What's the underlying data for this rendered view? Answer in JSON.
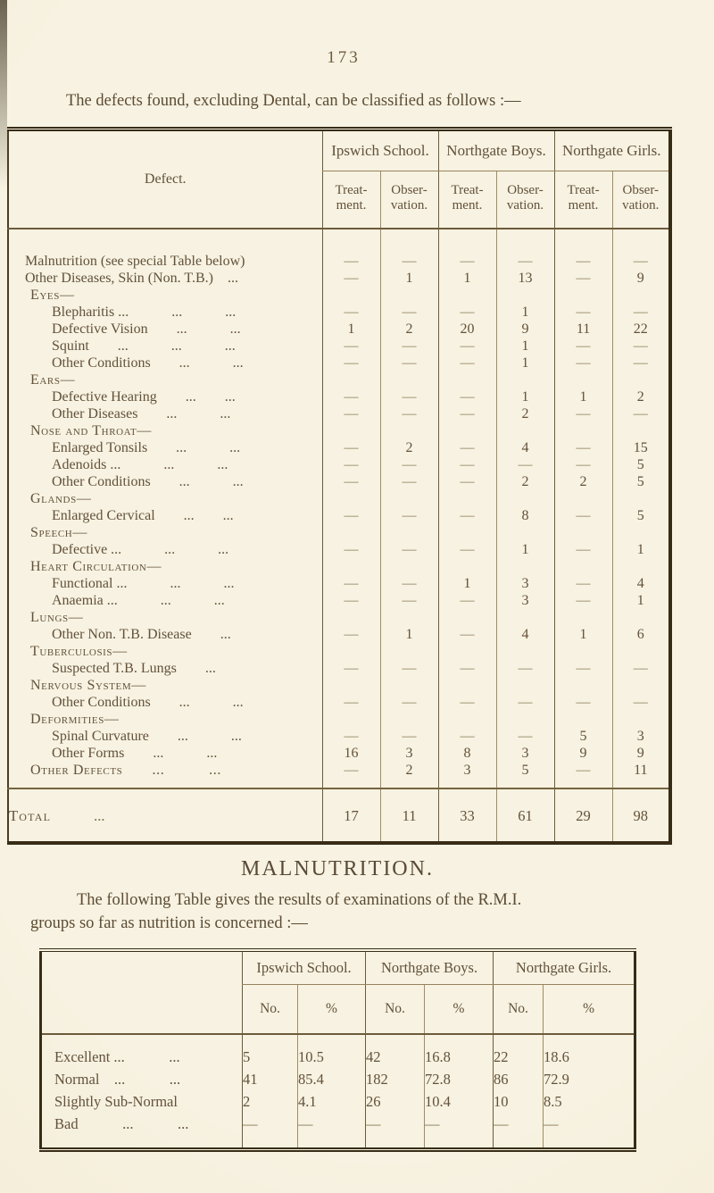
{
  "colors": {
    "paper": "#f5efdd",
    "ink": "#5d4b33",
    "table_border": "#372c16"
  },
  "page": {
    "number": "173",
    "intro": "The defects found, excluding Dental, can be classified as follows :—"
  },
  "defects_table": {
    "header_label": "Defect.",
    "schools": [
      "Ipswich School.",
      "Northgate Boys.",
      "Northgate Girls."
    ],
    "sub_headers": [
      "Treat-\nment.",
      "Obser-\nvation."
    ],
    "rows": [
      {
        "type": "top",
        "label": "Malnutrition (see special Table below)",
        "values": [
          "—",
          "—",
          "—",
          "—",
          "—",
          "—"
        ]
      },
      {
        "type": "top",
        "label": "Other Diseases, Skin (Non. T.B.) ...",
        "values": [
          "—",
          "1",
          "1",
          "13",
          "—",
          "9"
        ]
      },
      {
        "type": "section",
        "label": "Eyes—",
        "values": null
      },
      {
        "type": "item",
        "label": "Blepharitis ...   ...   ...",
        "values": [
          "—",
          "—",
          "—",
          "1",
          "—",
          "—"
        ]
      },
      {
        "type": "item",
        "label": "Defective Vision  ...   ...",
        "values": [
          "1",
          "2",
          "20",
          "9",
          "11",
          "22"
        ]
      },
      {
        "type": "item",
        "label": "Squint  ...   ...   ...",
        "values": [
          "—",
          "—",
          "—",
          "1",
          "—",
          "—"
        ]
      },
      {
        "type": "item",
        "label": "Other Conditions  ...   ...",
        "values": [
          "—",
          "—",
          "—",
          "1",
          "—",
          "—"
        ]
      },
      {
        "type": "section",
        "label": "Ears—",
        "values": null
      },
      {
        "type": "item",
        "label": "Defective Hearing  ...  ...",
        "values": [
          "—",
          "—",
          "—",
          "1",
          "1",
          "2"
        ]
      },
      {
        "type": "item",
        "label": "Other Diseases  ...   ...",
        "values": [
          "—",
          "—",
          "—",
          "2",
          "—",
          "—"
        ]
      },
      {
        "type": "section",
        "label": "Nose and Throat—",
        "values": null
      },
      {
        "type": "item",
        "label": "Enlarged Tonsils  ...   ...",
        "values": [
          "—",
          "2",
          "—",
          "4",
          "—",
          "15"
        ]
      },
      {
        "type": "item",
        "label": "Adenoids ...   ...   ...",
        "values": [
          "—",
          "—",
          "—",
          "—",
          "—",
          "5"
        ]
      },
      {
        "type": "item",
        "label": "Other Conditions  ...   ...",
        "values": [
          "—",
          "—",
          "—",
          "2",
          "2",
          "5"
        ]
      },
      {
        "type": "section",
        "label": "Glands—",
        "values": null
      },
      {
        "type": "item",
        "label": "Enlarged Cervical  ...  ...",
        "values": [
          "—",
          "—",
          "—",
          "8",
          "—",
          "5"
        ]
      },
      {
        "type": "section",
        "label": "Speech—",
        "values": null
      },
      {
        "type": "item",
        "label": "Defective ...   ...   ...",
        "values": [
          "—",
          "—",
          "—",
          "1",
          "—",
          "1"
        ]
      },
      {
        "type": "section",
        "label": "Heart Circulation—",
        "values": null
      },
      {
        "type": "item",
        "label": "Functional ...   ...   ...",
        "values": [
          "—",
          "—",
          "1",
          "3",
          "—",
          "4"
        ]
      },
      {
        "type": "item",
        "label": "Anaemia ...   ...   ...",
        "values": [
          "—",
          "—",
          "—",
          "3",
          "—",
          "1"
        ]
      },
      {
        "type": "section",
        "label": "Lungs—",
        "values": null
      },
      {
        "type": "item",
        "label": "Other Non. T.B. Disease  ...",
        "values": [
          "—",
          "1",
          "—",
          "4",
          "1",
          "6"
        ]
      },
      {
        "type": "section",
        "label": "Tuberculosis—",
        "values": null
      },
      {
        "type": "item",
        "label": "Suspected T.B. Lungs  ...",
        "values": [
          "—",
          "—",
          "—",
          "—",
          "—",
          "—"
        ]
      },
      {
        "type": "section",
        "label": "Nervous System—",
        "values": null
      },
      {
        "type": "item",
        "label": "Other Conditions  ...   ...",
        "values": [
          "—",
          "—",
          "—",
          "—",
          "—",
          "—"
        ]
      },
      {
        "type": "section",
        "label": "Deformities—",
        "values": null
      },
      {
        "type": "item",
        "label": "Spinal Curvature  ...   ...",
        "values": [
          "—",
          "—",
          "—",
          "—",
          "5",
          "3"
        ]
      },
      {
        "type": "item",
        "label": "Other Forms  ...   ...",
        "values": [
          "16",
          "3",
          "8",
          "3",
          "9",
          "9"
        ]
      },
      {
        "type": "section_data",
        "label": "Other Defects  ...   ...",
        "values": [
          "—",
          "2",
          "3",
          "5",
          "—",
          "11"
        ]
      }
    ],
    "total": {
      "label": "Total",
      "dots": "...",
      "values": [
        "17",
        "11",
        "33",
        "61",
        "29",
        "98"
      ]
    }
  },
  "malnutrition": {
    "heading": "MALNUTRITION.",
    "intro_line1": "The following Table gives the results of examinations of the R.M.I.",
    "intro_line2": "groups so far as nutrition is concerned :—",
    "table": {
      "schools": [
        "Ipswich School.",
        "Northgate Boys.",
        "Northgate Girls."
      ],
      "sub_headers": [
        "No.",
        "%"
      ],
      "rows": [
        {
          "label": "Excellent ...   ...",
          "values": [
            "5",
            "10.5",
            "42",
            "16.8",
            "22",
            "18.6"
          ]
        },
        {
          "label": "Normal ...   ...",
          "values": [
            "41",
            "85.4",
            "182",
            "72.8",
            "86",
            "72.9"
          ]
        },
        {
          "label": "Slightly Sub-Normal",
          "values": [
            "2",
            "4.1",
            "26",
            "10.4",
            "10",
            "8.5"
          ]
        },
        {
          "label": "Bad   ...   ...",
          "values": [
            "—",
            "—",
            "—",
            "—",
            "—",
            "—"
          ]
        }
      ]
    }
  }
}
